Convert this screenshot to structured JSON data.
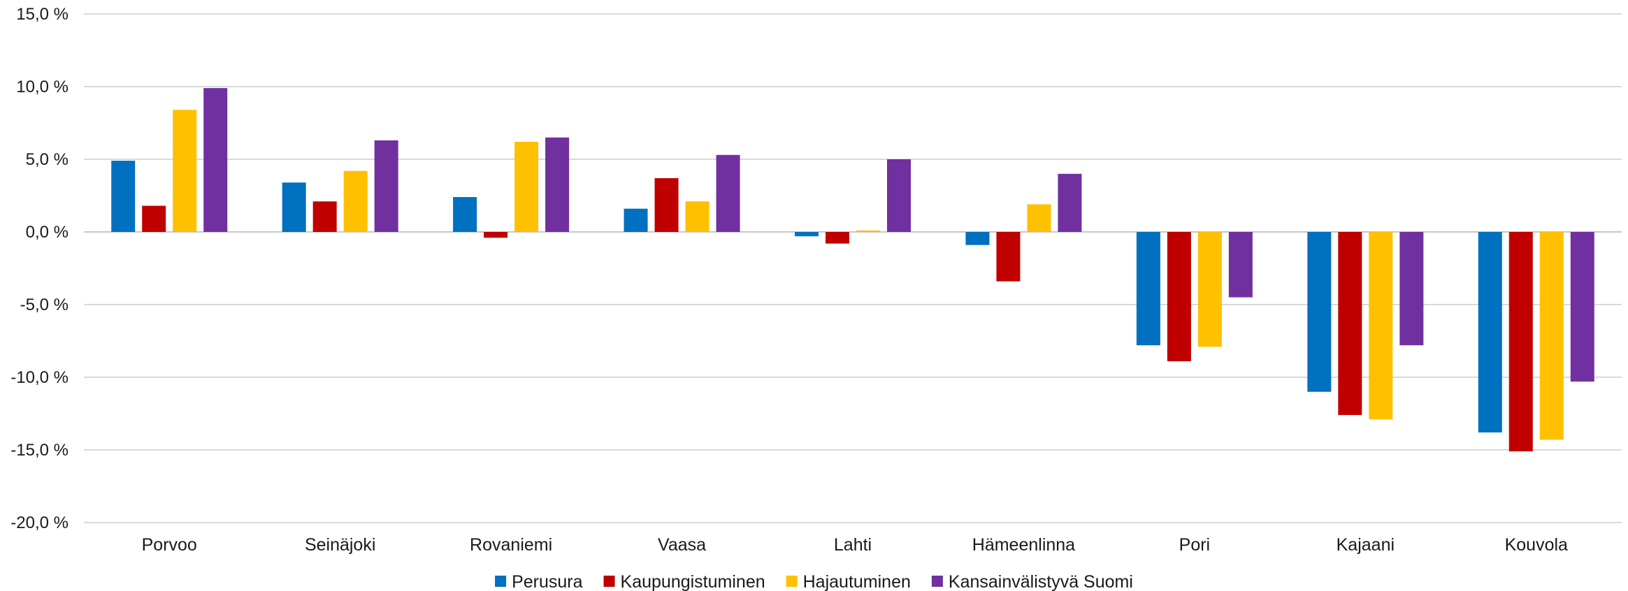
{
  "chart_data": {
    "type": "bar",
    "title": "",
    "xlabel": "",
    "ylabel": "",
    "ylim": [
      -20,
      15
    ],
    "y_ticks": [
      15,
      10,
      5,
      0,
      -5,
      -10,
      -15,
      -20
    ],
    "y_tick_labels": [
      "15,0 %",
      "10,0 %",
      "5,0 %",
      "0,0 %",
      "-5,0 %",
      "-10,0 %",
      "-15,0 %",
      "-20,0 %"
    ],
    "grid": true,
    "legend_position": "bottom",
    "categories": [
      "Porvoo",
      "Seinäjoki",
      "Rovaniemi",
      "Vaasa",
      "Lahti",
      "Hämeenlinna",
      "Pori",
      "Kajaani",
      "Kouvola"
    ],
    "series": [
      {
        "name": "Perusura",
        "color": "#0070C0",
        "values": [
          4.9,
          3.4,
          2.4,
          1.6,
          -0.3,
          -0.9,
          -7.8,
          -11.0,
          -13.8
        ]
      },
      {
        "name": "Kaupungistuminen",
        "color": "#C00000",
        "values": [
          1.8,
          2.1,
          -0.4,
          3.7,
          -0.8,
          -3.4,
          -8.9,
          -12.6,
          -15.1
        ]
      },
      {
        "name": "Hajautuminen",
        "color": "#FFC000",
        "values": [
          8.4,
          4.2,
          6.2,
          2.1,
          0.1,
          1.9,
          -7.9,
          -12.9,
          -14.3
        ]
      },
      {
        "name": "Kansainvälistyvä Suomi",
        "color": "#7030A0",
        "values": [
          9.9,
          6.3,
          6.5,
          5.3,
          5.0,
          4.0,
          -4.5,
          -7.8,
          -10.3
        ]
      }
    ]
  }
}
